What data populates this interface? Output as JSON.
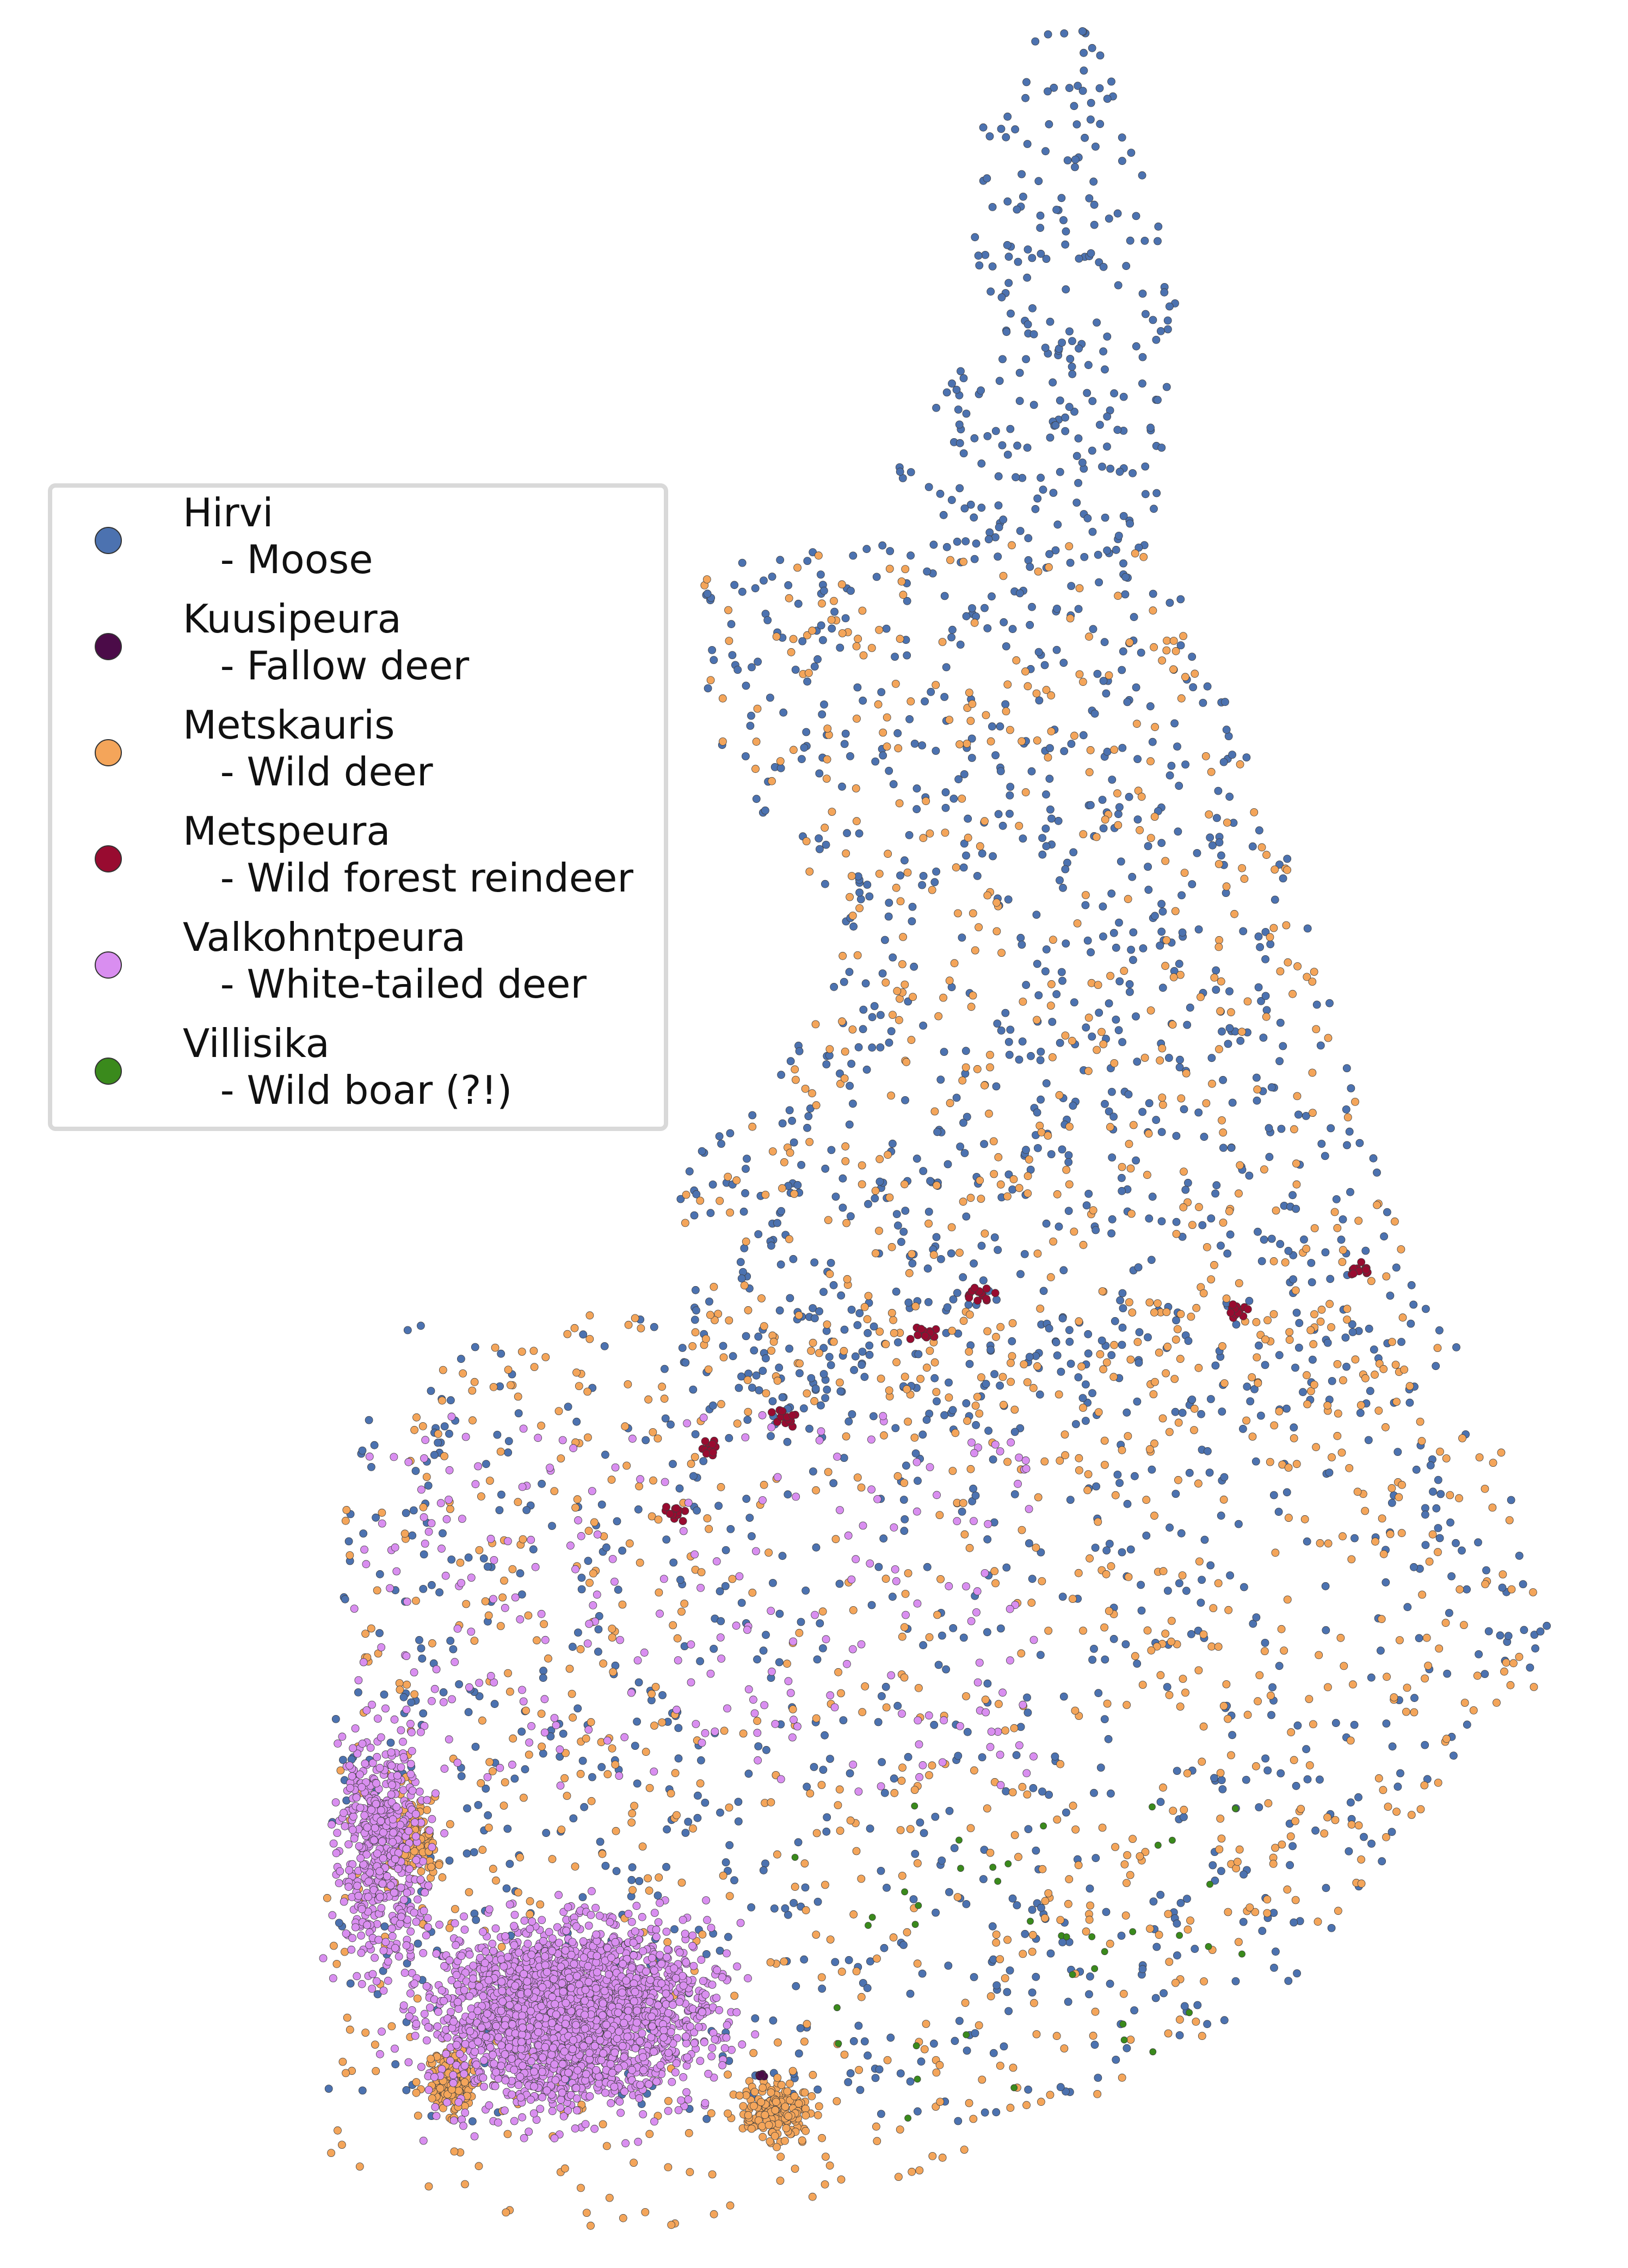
{
  "map": {
    "colors": {
      "moose": "#4c72b0",
      "fallow_deer": "#4b0b48",
      "wild_deer": "#f4a55a",
      "forest_reindeer": "#980b30",
      "white_tailed_deer": "#d98ef0",
      "wild_boar": "#3a8a1c",
      "legend_border": "#d9d9d9"
    }
  },
  "legend": {
    "items": [
      {
        "name": "Hirvi",
        "desc": "   - Moose",
        "color": "#4c72b0"
      },
      {
        "name": "Kuusipeura",
        "desc": "   - Fallow deer",
        "color": "#4b0b48"
      },
      {
        "name": "Metskauris",
        "desc": "   - Wild deer",
        "color": "#f4a55a"
      },
      {
        "name": "Metspeura",
        "desc": "   - Wild forest reindeer",
        "color": "#980b30"
      },
      {
        "name": "Valkohntpeura",
        "desc": "   - White-tailed deer",
        "color": "#d98ef0"
      },
      {
        "name": "Villisika",
        "desc": "   - Wild boar (?!)",
        "color": "#3a8a1c"
      }
    ]
  }
}
